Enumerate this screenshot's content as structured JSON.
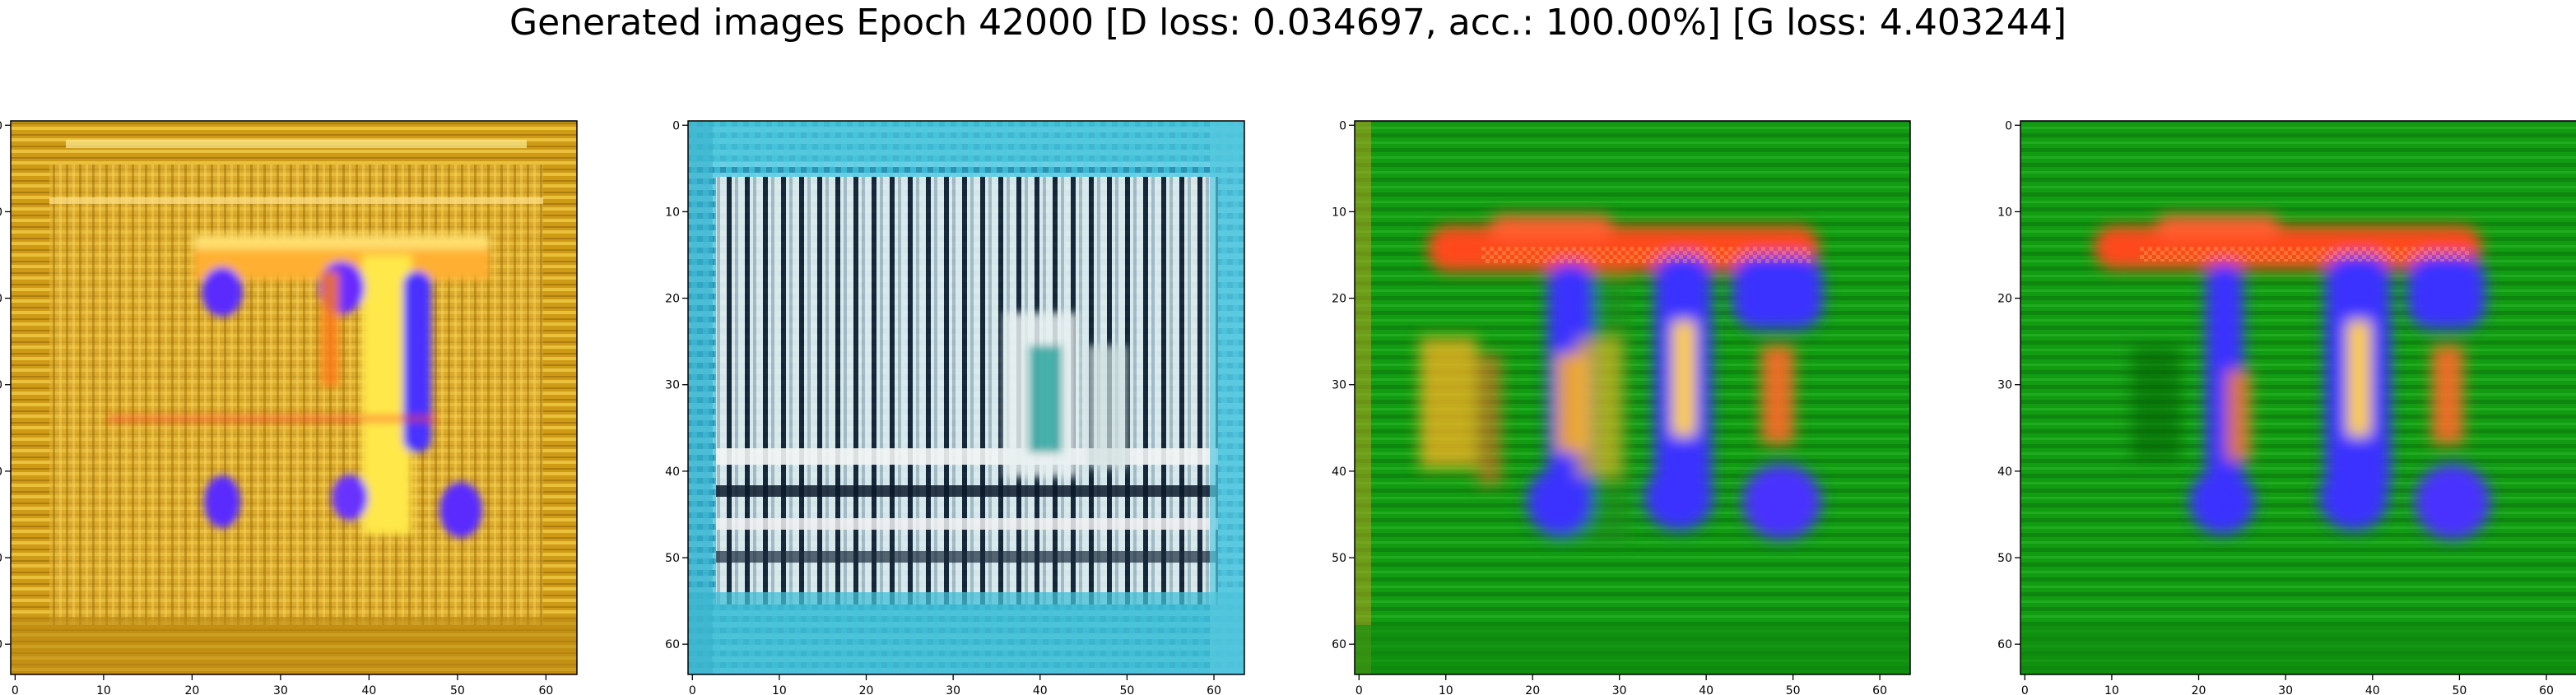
{
  "title": "Generated images Epoch 42000 [D loss: 0.034697, acc.: 100.00%] [G loss: 4.403244]",
  "chart_data": [
    {
      "type": "heatmap",
      "panel": 1,
      "xlim": [
        0,
        63
      ],
      "ylim": [
        63,
        0
      ],
      "xticks": [
        0,
        10,
        20,
        30,
        40,
        50,
        60
      ],
      "yticks": [
        0,
        10,
        20,
        30,
        40,
        50,
        60
      ],
      "background_color": "#d4a017",
      "description_colors": {
        "border": "#c68a10",
        "letter_main": "#ffd23c",
        "accent_1": "#5a2cff",
        "accent_2": "#ff3a3a"
      }
    },
    {
      "type": "heatmap",
      "panel": 2,
      "xlim": [
        0,
        63
      ],
      "ylim": [
        63,
        0
      ],
      "xticks": [
        0,
        10,
        20,
        30,
        40,
        50,
        60
      ],
      "yticks": [
        0,
        10,
        20,
        30,
        40,
        50,
        60
      ],
      "background_color": "#3fb6cf",
      "description_colors": {
        "border": "#39c2e0",
        "pattern_light": "#e6eef0",
        "pattern_dark": "#0c1a2a",
        "accent_1": "#20a0a0"
      }
    },
    {
      "type": "heatmap",
      "panel": 3,
      "xlim": [
        0,
        63
      ],
      "ylim": [
        63,
        0
      ],
      "xticks": [
        0,
        10,
        20,
        30,
        40,
        50,
        60
      ],
      "yticks": [
        0,
        10,
        20,
        30,
        40,
        50,
        60
      ],
      "background_color": "#12a010",
      "description_colors": {
        "border": "#0e8e0e",
        "bar_top": "#ff4a22",
        "stems": "#3a30ff",
        "highlights": "#ffc020"
      }
    },
    {
      "type": "heatmap",
      "panel": 4,
      "xlim": [
        0,
        63
      ],
      "ylim": [
        63,
        0
      ],
      "xticks": [
        0,
        10,
        20,
        30,
        40,
        50,
        60
      ],
      "yticks": [
        0,
        10,
        20,
        30,
        40,
        50,
        60
      ],
      "background_color": "#12a010",
      "description_colors": {
        "border": "#0e8e0e",
        "bar_top": "#ff4a22",
        "stems": "#3a30ff",
        "highlights": "#ffc020"
      }
    }
  ]
}
